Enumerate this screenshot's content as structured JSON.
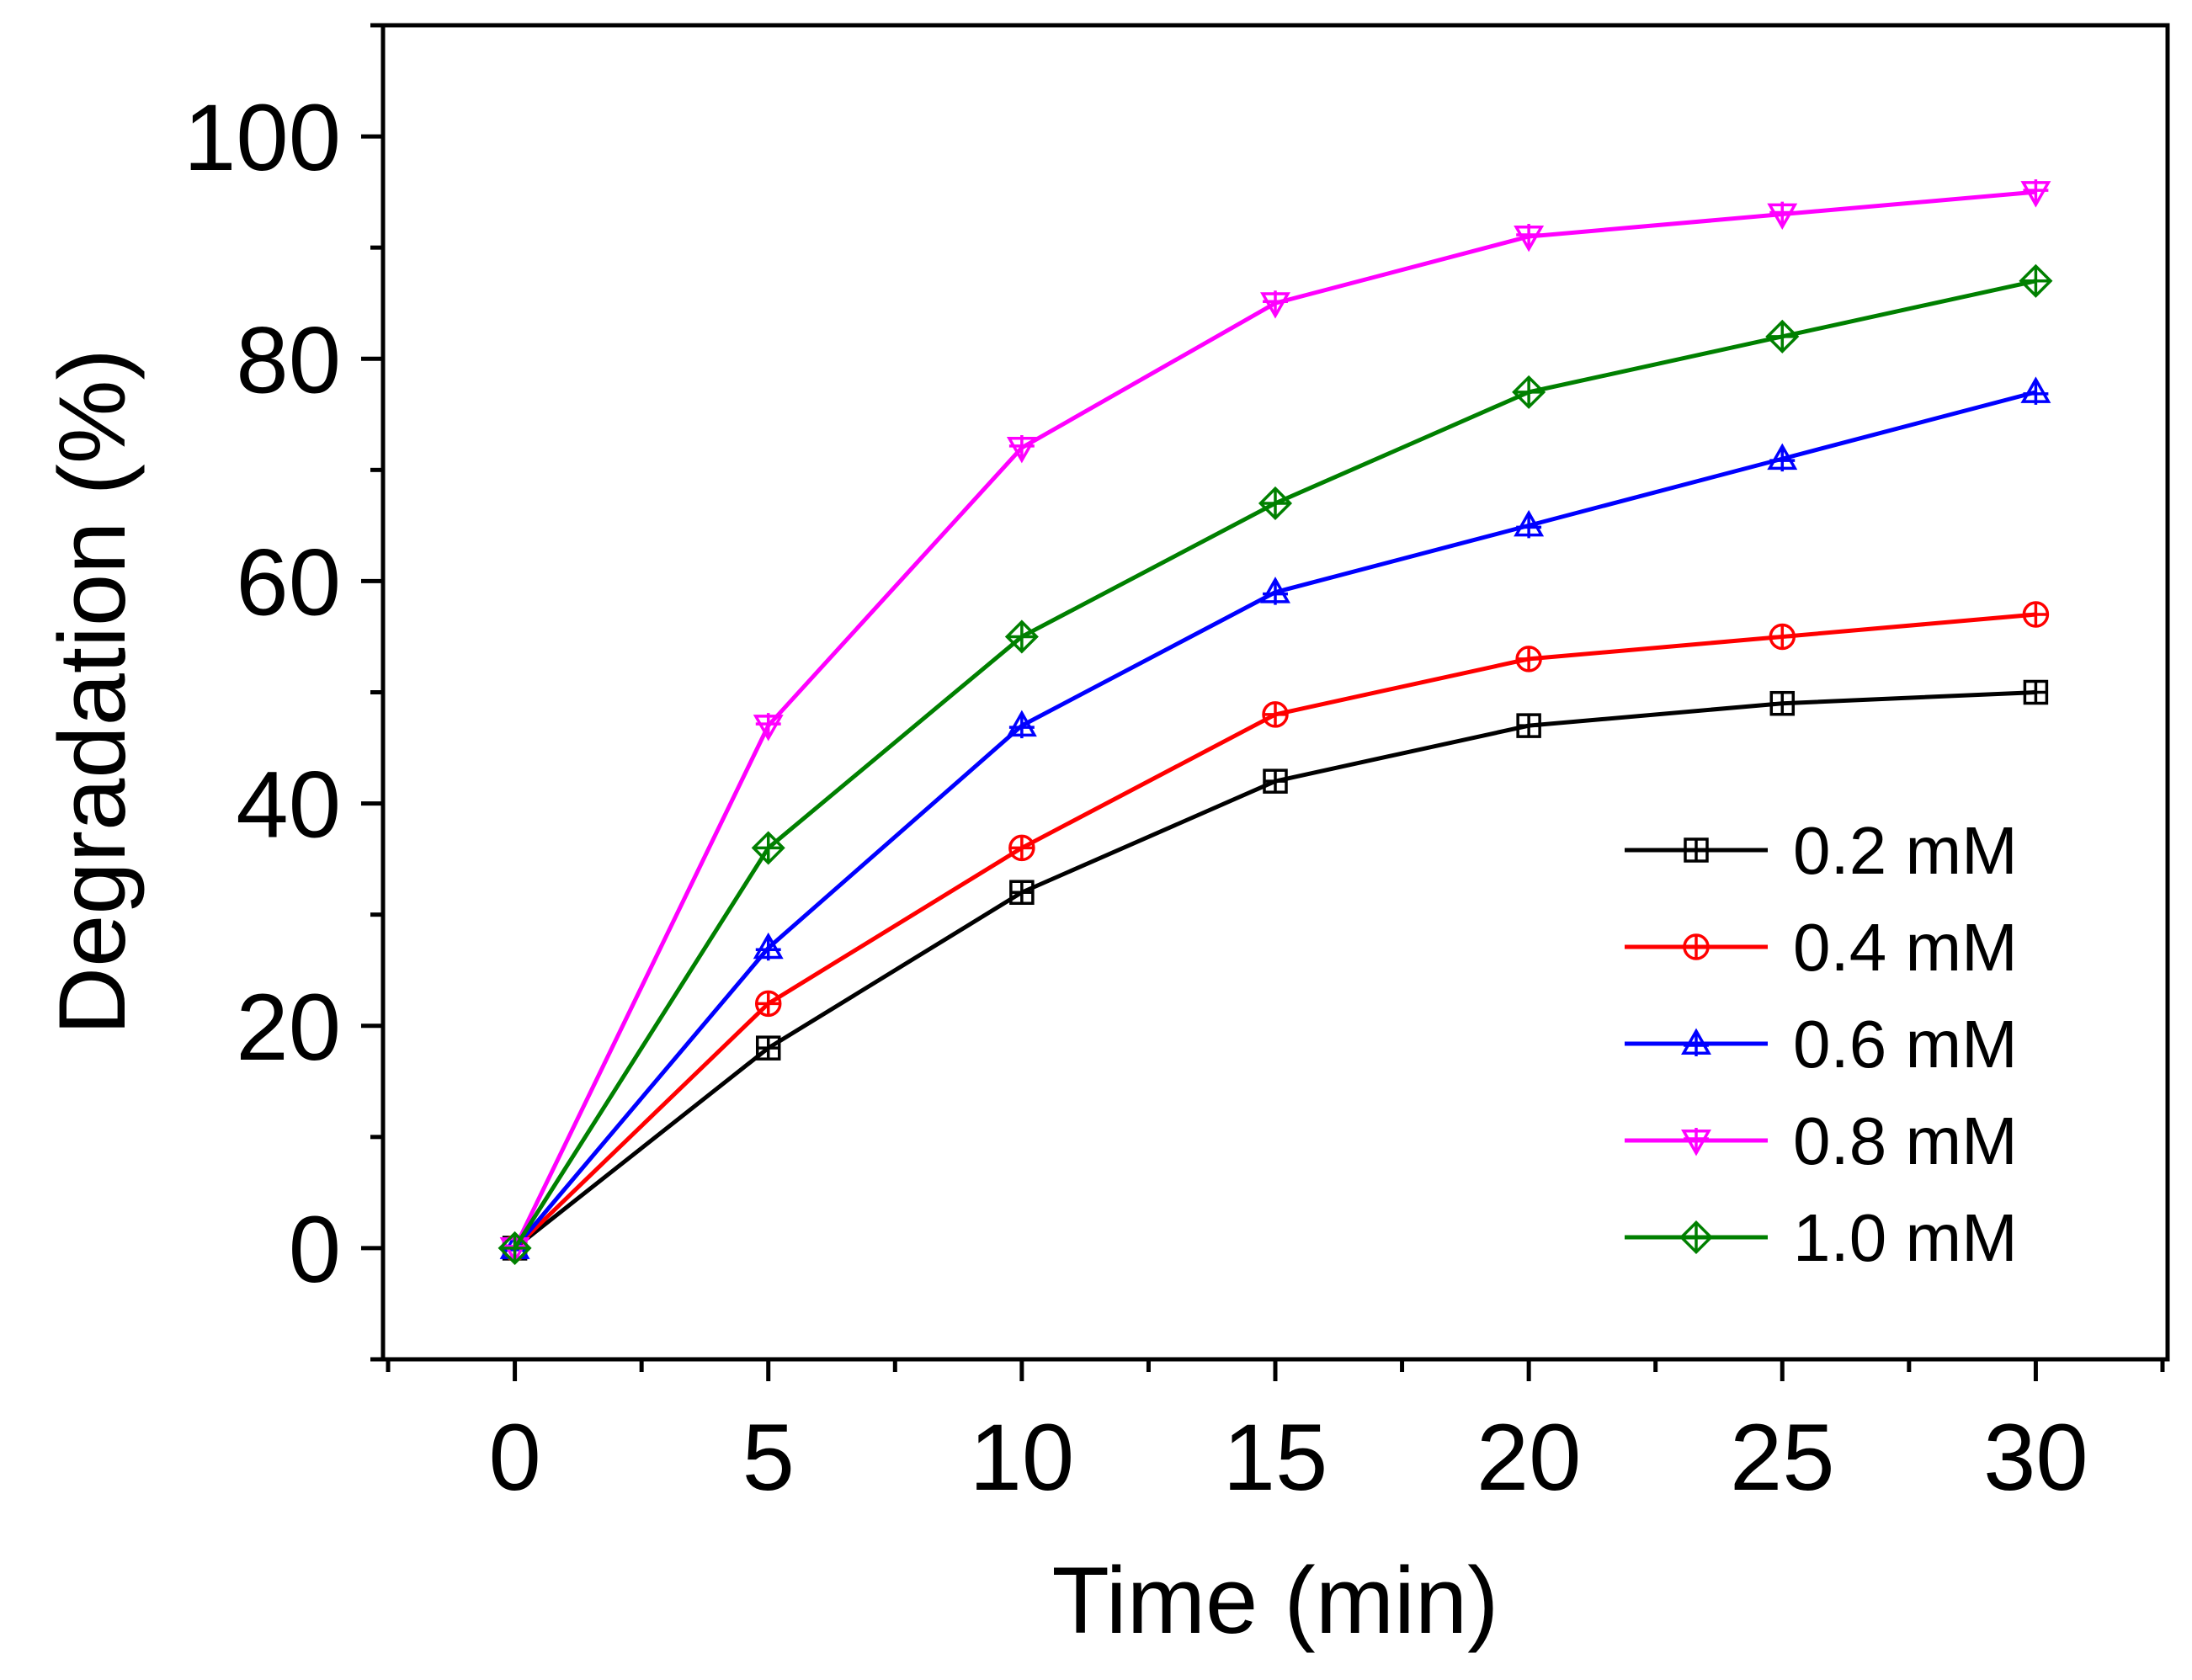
{
  "chart_data": {
    "type": "line",
    "title": "",
    "xlabel": "Time (min)",
    "ylabel": "Degradation (%)",
    "x": [
      0,
      5,
      10,
      15,
      20,
      25,
      30
    ],
    "xlim": [
      -2.6,
      32.6
    ],
    "ylim": [
      -10,
      110
    ],
    "xticks": [
      0,
      5,
      10,
      15,
      20,
      25,
      30
    ],
    "yticks": [
      0,
      20,
      40,
      60,
      80,
      100
    ],
    "x_tick_labels": [
      "0",
      "5",
      "10",
      "15",
      "20",
      "25",
      "30"
    ],
    "y_tick_labels": [
      "0",
      "20",
      "40",
      "60",
      "80",
      "100"
    ],
    "grid": false,
    "legend_position": "lower-right",
    "series": [
      {
        "name": "0.2 mM",
        "color": "#000000",
        "marker": "square-cross",
        "values": [
          0,
          18,
          32,
          42,
          47,
          49,
          50
        ]
      },
      {
        "name": "0.4 mM",
        "color": "#ff0000",
        "marker": "circle-cross",
        "values": [
          0,
          22,
          36,
          48,
          53,
          55,
          57
        ]
      },
      {
        "name": "0.6 mM",
        "color": "#0000ff",
        "marker": "triangle-up-cross",
        "values": [
          0,
          27,
          47,
          59,
          65,
          71,
          77
        ]
      },
      {
        "name": "0.8 mM",
        "color": "#ff00ff",
        "marker": "triangle-down-cross",
        "values": [
          0,
          47,
          72,
          85,
          91,
          93,
          95
        ]
      },
      {
        "name": "1.0 mM",
        "color": "#008000",
        "marker": "diamond-cross",
        "values": [
          0,
          36,
          55,
          67,
          77,
          82,
          87
        ]
      }
    ]
  }
}
